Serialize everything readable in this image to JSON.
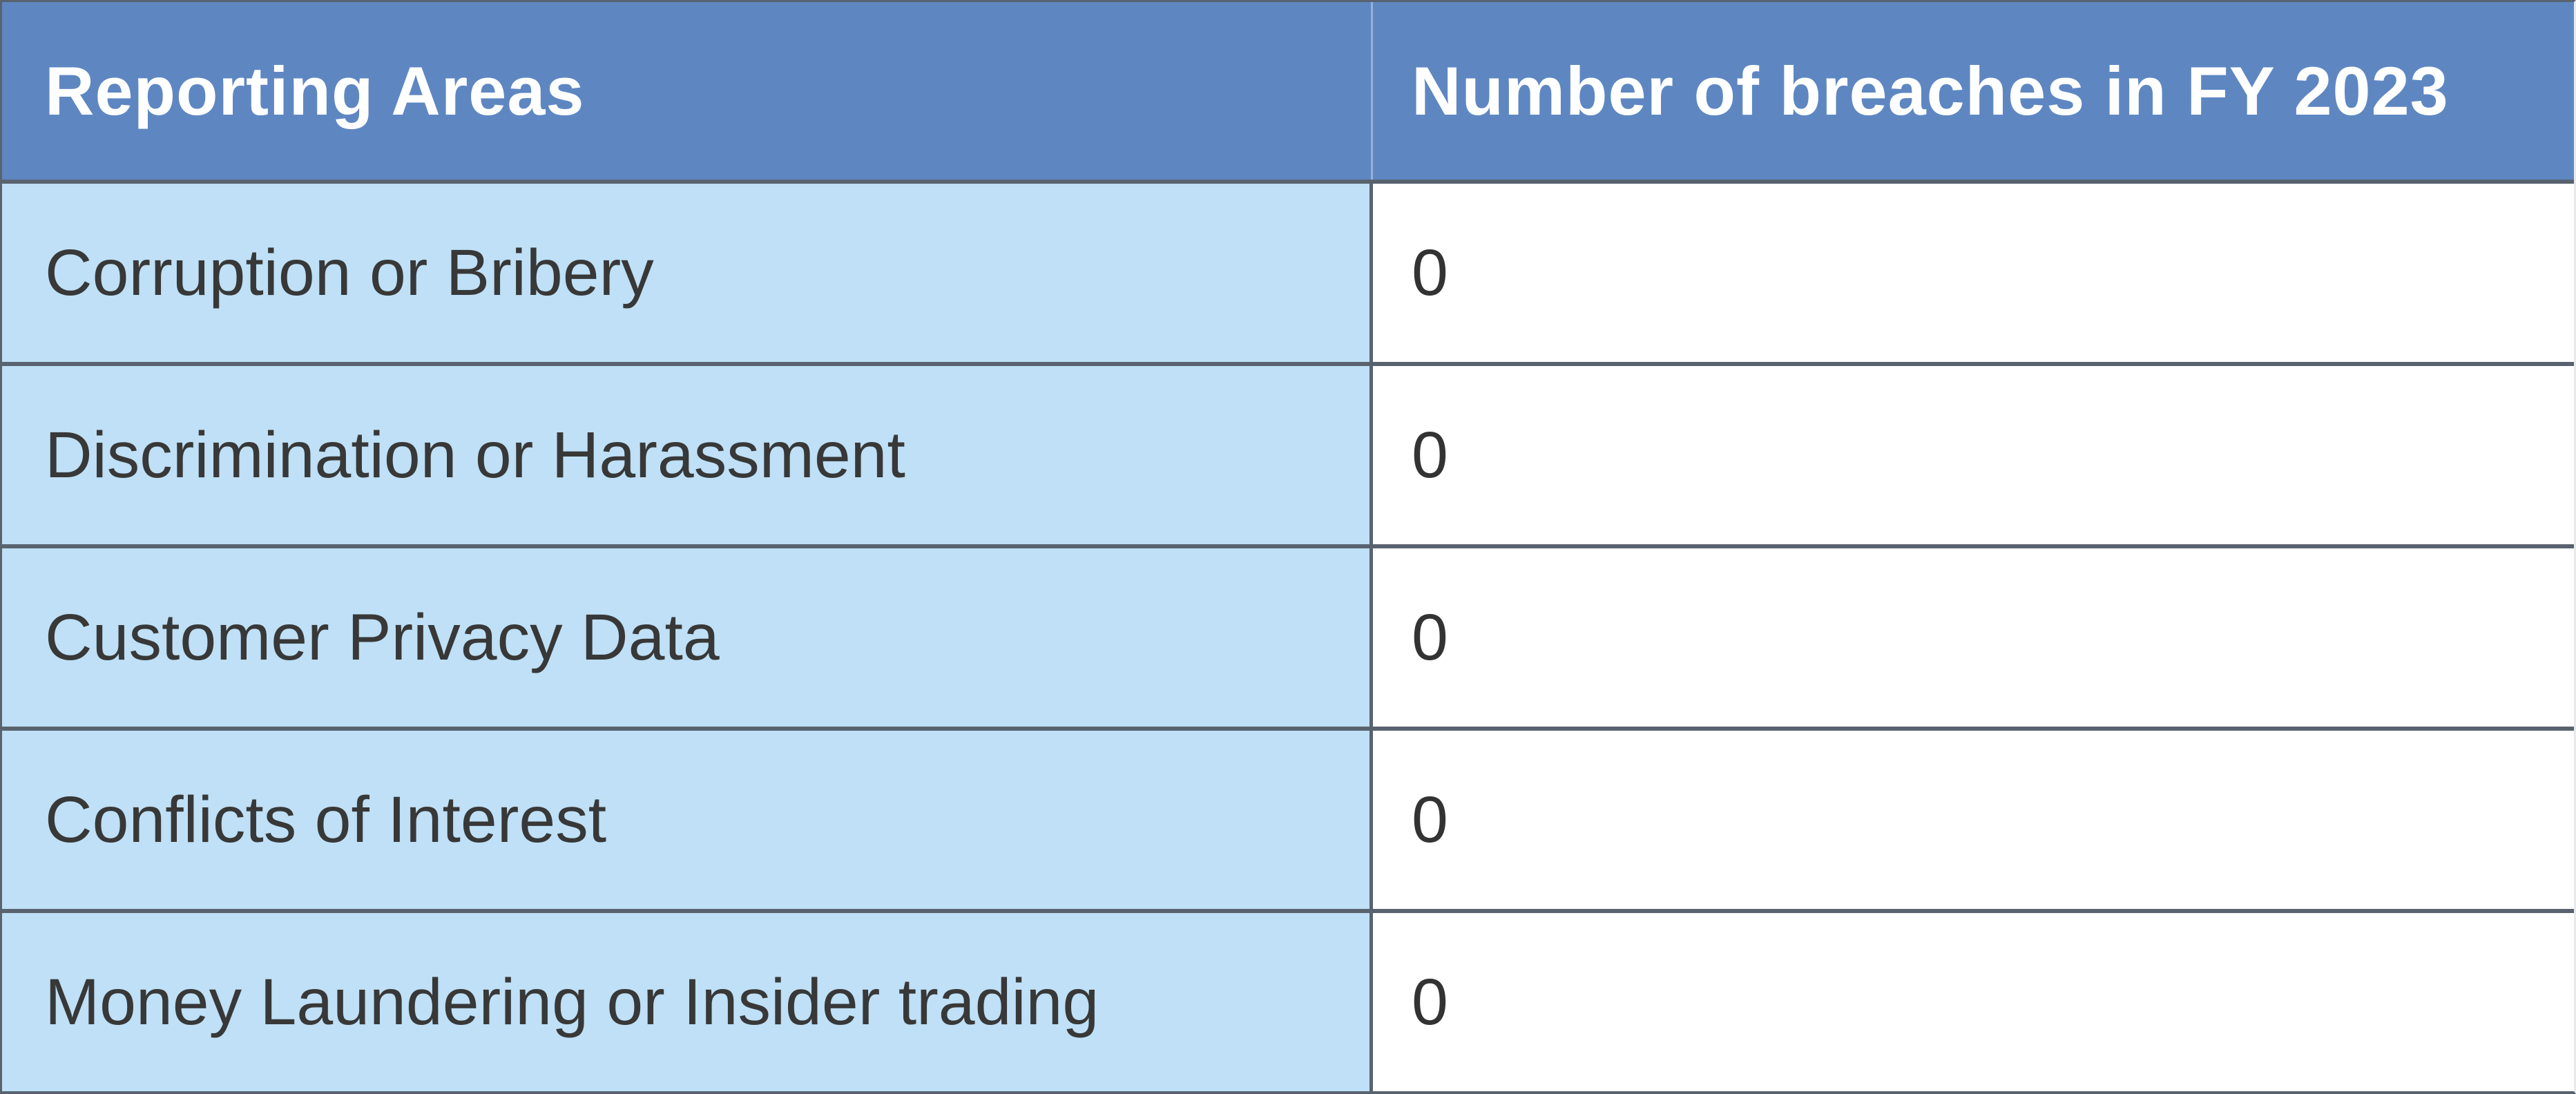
{
  "table": {
    "header": {
      "col1": "Reporting Areas",
      "col2": "Number of breaches in FY 2023"
    },
    "rows": [
      {
        "area": "Corruption or Bribery",
        "value": "0"
      },
      {
        "area": "Discrimination or Harassment",
        "value": "0"
      },
      {
        "area": "Customer Privacy Data",
        "value": "0"
      },
      {
        "area": "Conflicts of Interest",
        "value": "0"
      },
      {
        "area": "Money Laundering or Insider trading",
        "value": "0"
      }
    ]
  },
  "chart_data": {
    "type": "table",
    "title": "",
    "columns": [
      "Reporting Areas",
      "Number of breaches in FY 2023"
    ],
    "categories": [
      "Corruption or Bribery",
      "Discrimination or Harassment",
      "Customer Privacy Data",
      "Conflicts of Interest",
      "Money Laundering or Insider trading"
    ],
    "values": [
      0,
      0,
      0,
      0,
      0
    ]
  },
  "colors": {
    "header_bg": "#5e87c2",
    "label_cell_bg": "#bfe0f6",
    "value_cell_bg": "#ffffff",
    "border": "#59636f",
    "header_text": "#ffffff",
    "body_text": "#383838"
  }
}
